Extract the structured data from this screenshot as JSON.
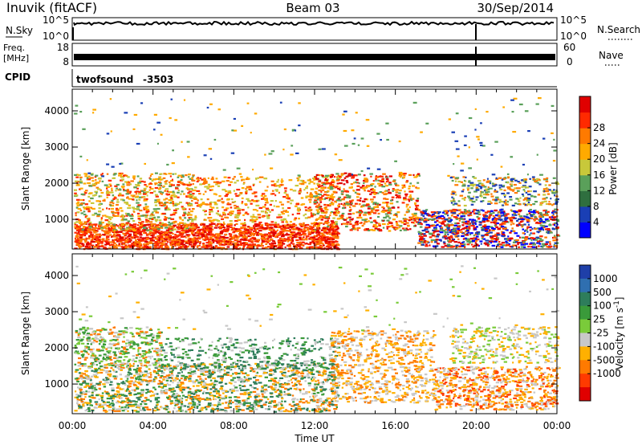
{
  "header": {
    "station": "Inuvik (fitACF)",
    "beam": "Beam 03",
    "date": "30/Sep/2014"
  },
  "sky_panel": {
    "label": "N.Sky",
    "left_ticks": [
      "10^5",
      "10^0"
    ],
    "right_label": "N.Search",
    "right_ticks": [
      "10^5",
      "10^0"
    ]
  },
  "freq_panel": {
    "label_line1": "Freq.",
    "label_line2": "[MHz]",
    "left_ticks": [
      "18",
      "8"
    ],
    "right_label": "Nave",
    "right_ticks": [
      "60",
      "0"
    ]
  },
  "cpid": {
    "label": "CPID",
    "name": "twofsound",
    "id": "-3503"
  },
  "xaxis": {
    "title": "Time UT",
    "ticks": [
      "00:00",
      "04:00",
      "08:00",
      "12:00",
      "16:00",
      "20:00",
      "00:00"
    ]
  },
  "chart_data": [
    {
      "type": "heatmap",
      "title": "",
      "ylabel": "Slant Range [km]",
      "xlabel": "Time UT",
      "yticks": [
        1000,
        2000,
        3000,
        4000
      ],
      "ylim": [
        180,
        4600
      ],
      "colorbar": {
        "label": "Power [dB]",
        "ticks": [
          4,
          8,
          12,
          16,
          20,
          24,
          28
        ],
        "tick_labels": [
          "4",
          "8",
          "12",
          "16",
          "20",
          "24",
          "28"
        ],
        "colors": [
          "#0000ff",
          "#1a3fb5",
          "#2f6f3f",
          "#5aa05a",
          "#c8c83a",
          "#ffaa00",
          "#ff7a00",
          "#ff2a00",
          "#e00000"
        ]
      }
    },
    {
      "type": "heatmap",
      "title": "",
      "ylabel": "Slant Range [km]",
      "xlabel": "Time UT",
      "yticks": [
        1000,
        2000,
        3000,
        4000
      ],
      "ylim": [
        180,
        4600
      ],
      "colorbar": {
        "label": "Velocity [m s^-1]",
        "ticks": [
          1000,
          500,
          100,
          25,
          -25,
          -100,
          -500,
          -1000
        ],
        "tick_labels": [
          "1000",
          "500",
          "100",
          "25",
          "-25",
          "-100",
          "-500",
          "-1000"
        ],
        "colors": [
          "#1f3fa8",
          "#2f6fb0",
          "#2e7d5b",
          "#3a9a3a",
          "#7acb3a",
          "#c8c8c8",
          "#ffb000",
          "#ff7a00",
          "#ff3a00",
          "#e00000"
        ]
      }
    }
  ]
}
